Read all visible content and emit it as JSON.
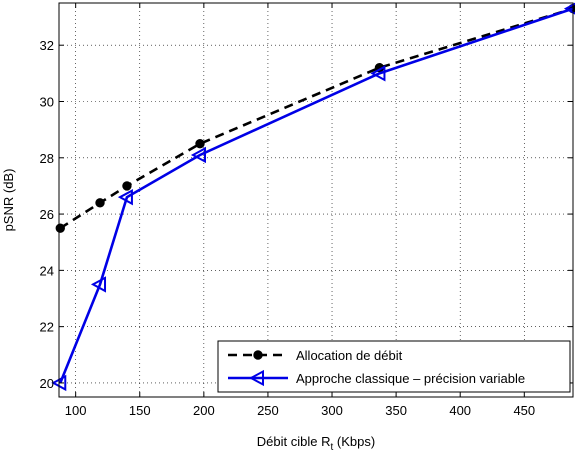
{
  "chart_data": {
    "type": "line",
    "title": "",
    "xlabel": "Débit cible R",
    "xlabel_subscript": "t",
    "xlabel_suffix": " (Kbps)",
    "ylabel": "pSNR (dB)",
    "xlim": [
      87,
      488
    ],
    "ylim": [
      19.5,
      33.5
    ],
    "xticks": [
      100,
      150,
      200,
      250,
      300,
      350,
      400,
      450
    ],
    "yticks": [
      20,
      22,
      24,
      26,
      28,
      30,
      32
    ],
    "grid": true,
    "legend_position": "bottom-right",
    "series": [
      {
        "name": "Allocation de débit",
        "color": "#000000",
        "line_style": "dashed",
        "marker": "circle",
        "x": [
          88,
          119,
          140,
          197,
          337,
          488
        ],
        "y": [
          25.5,
          26.4,
          27.0,
          28.5,
          31.2,
          33.3
        ]
      },
      {
        "name": "Approche classique – précision variable",
        "color": "#0000e6",
        "line_style": "solid",
        "marker": "triangle-left",
        "x": [
          88,
          119,
          140,
          197,
          337,
          488
        ],
        "y": [
          20.0,
          23.5,
          26.6,
          28.1,
          31.0,
          33.3
        ]
      }
    ]
  }
}
